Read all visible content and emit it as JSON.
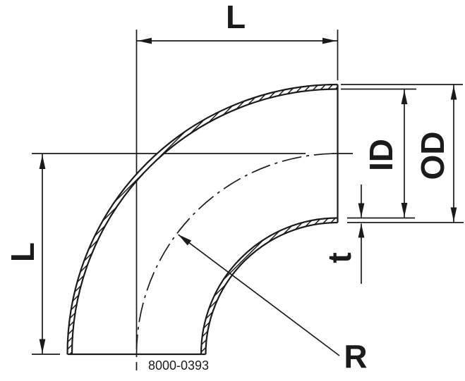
{
  "drawing": {
    "type": "90-degree-elbow-bend",
    "labels": {
      "length_top": "L",
      "length_left": "L",
      "inner_diameter": "ID",
      "outer_diameter": "OD",
      "wall_thickness": "t",
      "bend_radius": "R"
    },
    "drawing_number": "8000-0393",
    "colors": {
      "ink": "#1b1b1b",
      "background": "#ffffff"
    }
  }
}
